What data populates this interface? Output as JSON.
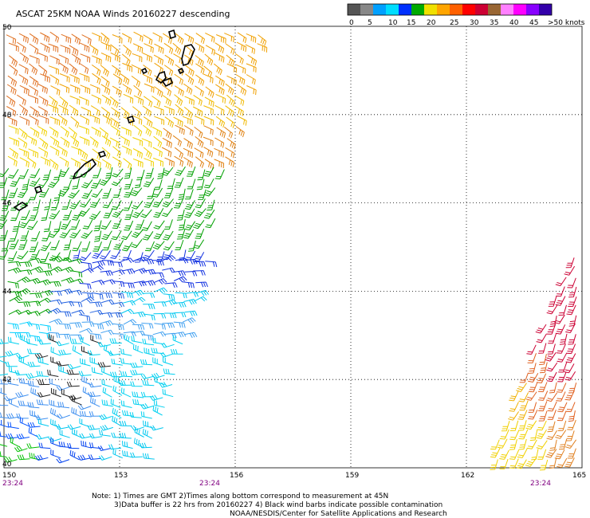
{
  "title": "ASCAT 25KM NOAA Winds 20160227 descending",
  "colorbar": {
    "colors": [
      "#555555",
      "#888888",
      "#00a0ff",
      "#00ddff",
      "#0030ff",
      "#00aa00",
      "#f0e000",
      "#ffa500",
      "#ff6000",
      "#ff0000",
      "#cc0033",
      "#996633",
      "#ff80ff",
      "#ff00ff",
      "#8800ff",
      "#3300aa"
    ],
    "ticks": [
      "0",
      "5",
      "10",
      "15",
      "20",
      "25",
      "30",
      "35",
      "40",
      "45",
      ">50 knots"
    ]
  },
  "map": {
    "lon_range": [
      150,
      165
    ],
    "lat_range": [
      40,
      50
    ],
    "lon_ticks": [
      "150",
      "153",
      "156",
      "159",
      "162",
      "165"
    ],
    "lat_ticks": [
      "50",
      "48",
      "46",
      "44",
      "42",
      "40"
    ],
    "times": [
      "23:24",
      "23:24",
      "23:24"
    ],
    "grid": true
  },
  "notes": [
    "Note: 1) Times are GMT 2)Times along bottom correspond to measurement at 45N",
    "3)Data buffer is 22 hrs from 20160227 4) Black wind barbs indicate possible contamination",
    "NOAA/NESDIS/Center for Satellite Applications and Research"
  ]
}
